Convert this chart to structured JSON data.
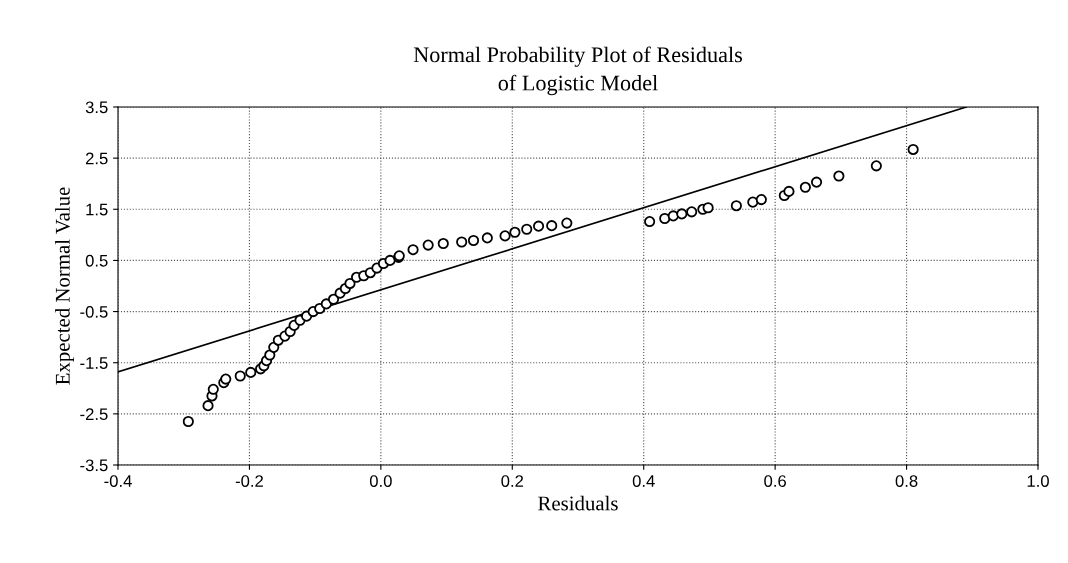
{
  "chart_data": {
    "type": "scatter",
    "title": "Normal Probability Plot of Residuals\nof Logistic Model",
    "xlabel": "Residuals",
    "ylabel": "Expected Normal Value",
    "xlim": [
      -0.4,
      1.0
    ],
    "xticks": [
      -0.4,
      -0.2,
      {
        "value": 0.0,
        "label": "0.0"
      },
      0.2,
      0.4,
      0.6,
      0.8,
      {
        "value": 1.0,
        "label": "1.0"
      }
    ],
    "ylim": [
      -3.5,
      3.5
    ],
    "yticks": [
      -3.5,
      -2.5,
      -1.5,
      -0.5,
      0.5,
      1.5,
      2.5,
      3.5
    ],
    "grid": true,
    "marker": "circle",
    "series": [
      {
        "color": "#000000",
        "x": [
          -0.293,
          -0.263,
          -0.257,
          -0.255,
          -0.239,
          -0.236,
          -0.214,
          -0.198,
          -0.183,
          -0.178,
          -0.174,
          -0.169,
          -0.163,
          -0.156,
          -0.146,
          -0.138,
          -0.132,
          -0.123,
          -0.113,
          -0.103,
          -0.093,
          -0.083,
          -0.072,
          -0.062,
          -0.054,
          -0.047,
          -0.037,
          -0.026,
          -0.016,
          -0.006,
          0.004,
          0.014,
          0.027,
          0.028,
          0.049,
          0.072,
          0.095,
          0.123,
          0.141,
          0.162,
          0.189,
          0.204,
          0.222,
          0.24,
          0.26,
          0.283,
          0.409,
          0.432,
          0.445,
          0.458,
          0.473,
          0.49,
          0.498,
          0.541,
          0.566,
          0.579,
          0.614,
          0.621,
          0.646,
          0.663,
          0.697,
          0.754,
          0.81
        ],
        "values": [
          -2.65,
          -2.34,
          -2.15,
          -2.02,
          -1.89,
          -1.82,
          -1.76,
          -1.69,
          -1.62,
          -1.56,
          -1.46,
          -1.35,
          -1.2,
          -1.06,
          -0.98,
          -0.89,
          -0.77,
          -0.67,
          -0.59,
          -0.5,
          -0.44,
          -0.35,
          -0.26,
          -0.14,
          -0.05,
          0.05,
          0.17,
          0.2,
          0.26,
          0.35,
          0.44,
          0.5,
          0.56,
          0.59,
          0.71,
          0.8,
          0.83,
          0.86,
          0.89,
          0.94,
          0.98,
          1.05,
          1.11,
          1.17,
          1.18,
          1.23,
          1.26,
          1.32,
          1.37,
          1.41,
          1.45,
          1.5,
          1.53,
          1.57,
          1.64,
          1.69,
          1.77,
          1.85,
          1.93,
          2.03,
          2.15,
          2.35,
          2.67
        ]
      },
      {
        "type": "line",
        "color": "#000000",
        "marker": "none",
        "x": [
          -0.4,
          0.891
        ],
        "values": [
          -1.68,
          3.5
        ]
      }
    ]
  }
}
